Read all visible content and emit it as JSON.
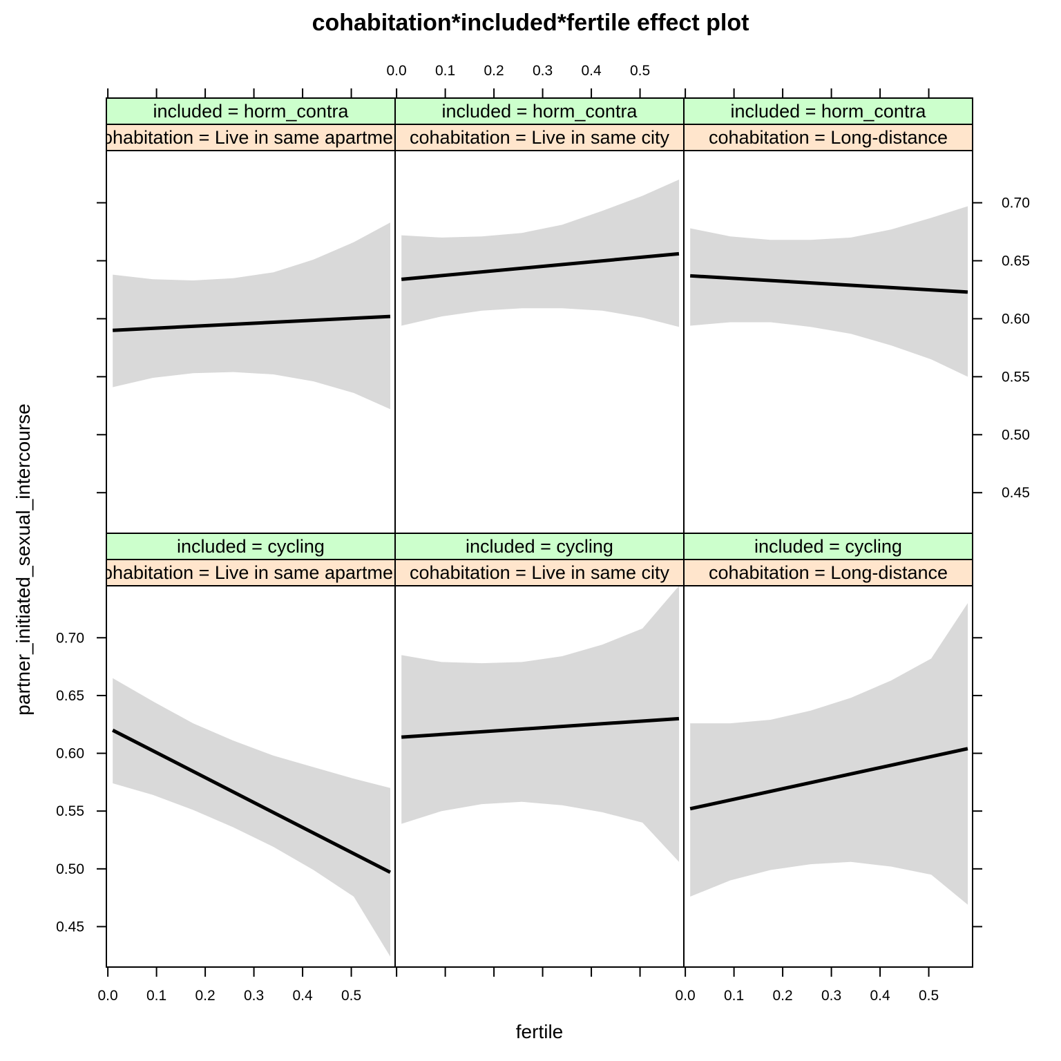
{
  "chart_data": {
    "type": "line",
    "title": "cohabitation*included*fertile effect plot",
    "xlabel": "fertile",
    "ylabel": "partner_initiated_sexual_intercourse",
    "xlim": [
      -0.003,
      0.59
    ],
    "ylim": [
      0.415,
      0.745
    ],
    "x_ticks": [
      0.0,
      0.1,
      0.2,
      0.3,
      0.4,
      0.5
    ],
    "x_tick_labels": [
      "0.0",
      "0.1",
      "0.2",
      "0.3",
      "0.4",
      "0.5"
    ],
    "y_ticks": [
      0.45,
      0.5,
      0.55,
      0.6,
      0.65,
      0.7
    ],
    "y_tick_labels": [
      "0.45",
      "0.50",
      "0.55",
      "0.60",
      "0.65",
      "0.70"
    ],
    "colors": {
      "band": "#d9d9d9",
      "line": "#000000",
      "strip_included": "#ccffcc",
      "strip_cohabitation": "#ffe5cc"
    },
    "x_grid": [
      0.01,
      0.0925,
      0.175,
      0.2575,
      0.34,
      0.4225,
      0.505,
      0.58
    ],
    "panels": [
      {
        "row": 0,
        "col": 0,
        "strip_included": "included = horm_contra",
        "strip_cohabitation": "cohabitation = Live in same apartment",
        "fit": [
          0.59,
          0.602
        ],
        "lower": [
          0.541,
          0.549,
          0.553,
          0.554,
          0.552,
          0.546,
          0.536,
          0.522
        ],
        "upper": [
          0.638,
          0.634,
          0.633,
          0.635,
          0.64,
          0.651,
          0.666,
          0.683
        ]
      },
      {
        "row": 0,
        "col": 1,
        "strip_included": "included = horm_contra",
        "strip_cohabitation": "cohabitation = Live in same city",
        "fit": [
          0.634,
          0.656
        ],
        "lower": [
          0.594,
          0.602,
          0.607,
          0.609,
          0.609,
          0.607,
          0.601,
          0.593
        ],
        "upper": [
          0.672,
          0.67,
          0.671,
          0.674,
          0.681,
          0.693,
          0.706,
          0.72
        ]
      },
      {
        "row": 0,
        "col": 2,
        "strip_included": "included = horm_contra",
        "strip_cohabitation": "cohabitation = Long-distance",
        "fit": [
          0.637,
          0.623
        ],
        "lower": [
          0.594,
          0.597,
          0.597,
          0.593,
          0.587,
          0.577,
          0.565,
          0.55
        ],
        "upper": [
          0.678,
          0.671,
          0.668,
          0.668,
          0.67,
          0.677,
          0.687,
          0.697
        ]
      },
      {
        "row": 1,
        "col": 0,
        "strip_included": "included = cycling",
        "strip_cohabitation": "cohabitation = Live in same apartment",
        "fit": [
          0.62,
          0.497
        ],
        "lower": [
          0.574,
          0.564,
          0.551,
          0.536,
          0.519,
          0.499,
          0.476,
          0.424
        ],
        "upper": [
          0.665,
          0.645,
          0.626,
          0.611,
          0.598,
          0.588,
          0.578,
          0.57
        ]
      },
      {
        "row": 1,
        "col": 1,
        "strip_included": "included = cycling",
        "strip_cohabitation": "cohabitation = Live in same city",
        "fit": [
          0.614,
          0.63
        ],
        "lower": [
          0.539,
          0.55,
          0.556,
          0.558,
          0.555,
          0.549,
          0.54,
          0.506
        ],
        "upper": [
          0.685,
          0.679,
          0.678,
          0.679,
          0.684,
          0.694,
          0.708,
          0.745
        ]
      },
      {
        "row": 1,
        "col": 2,
        "strip_included": "included = cycling",
        "strip_cohabitation": "cohabitation = Long-distance",
        "fit": [
          0.552,
          0.604
        ],
        "lower": [
          0.476,
          0.49,
          0.499,
          0.504,
          0.506,
          0.502,
          0.495,
          0.469
        ],
        "upper": [
          0.626,
          0.626,
          0.629,
          0.637,
          0.648,
          0.663,
          0.682,
          0.73
        ]
      }
    ]
  }
}
